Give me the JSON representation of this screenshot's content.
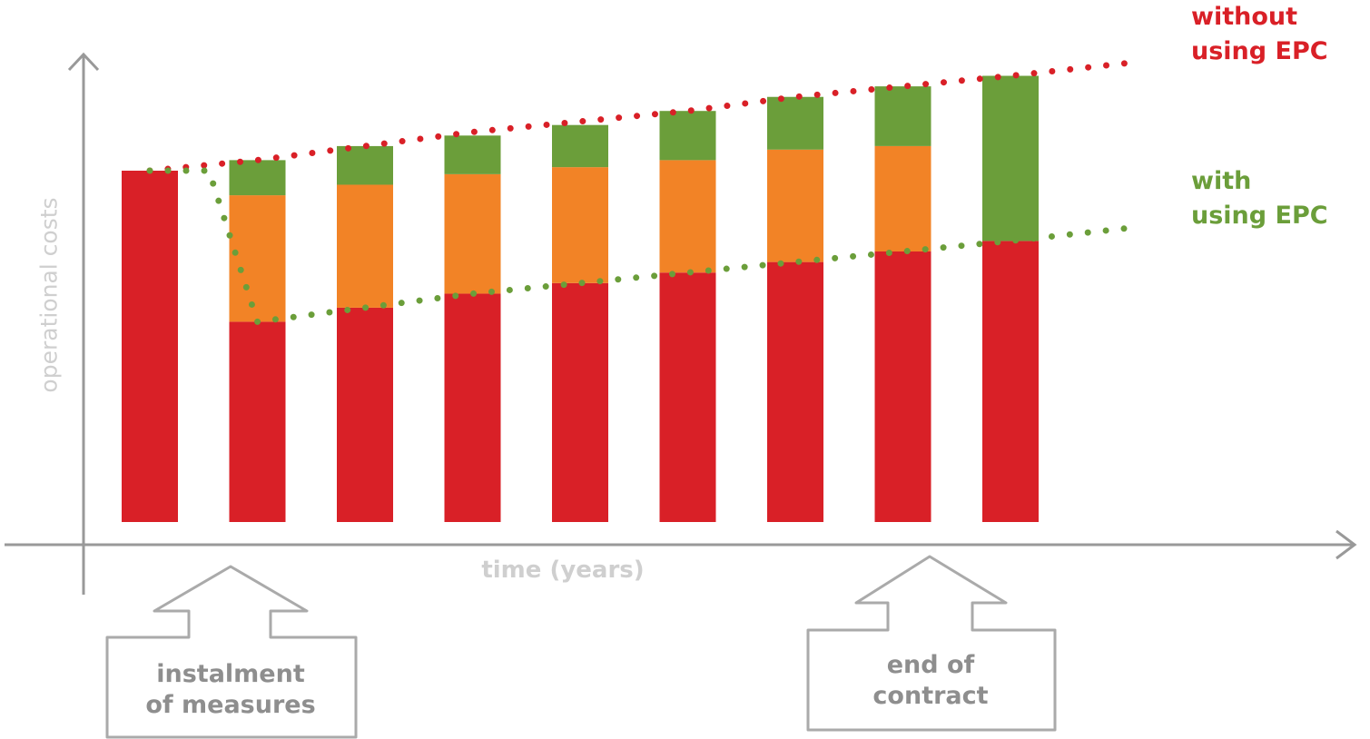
{
  "chart_data": {
    "type": "bar",
    "stacked": true,
    "categories": [
      "",
      "",
      "",
      "",
      "",
      "",
      "",
      "",
      ""
    ],
    "series": [
      {
        "color": "#d92027",
        "values": [
          100,
          57,
          61,
          65,
          68,
          71,
          74,
          77,
          80
        ]
      },
      {
        "color": "#f28326",
        "values": [
          0,
          36,
          35,
          34,
          33,
          32,
          32,
          30,
          0
        ]
      },
      {
        "color": "#6b9e3a",
        "values": [
          0,
          10,
          11,
          11,
          12,
          14,
          15,
          17,
          47
        ]
      }
    ],
    "lines": [
      {
        "name": "without using EPC",
        "color": "#d92027",
        "style": "dotted",
        "x": [
          0,
          1,
          2,
          3,
          4,
          5,
          6,
          7,
          8,
          9.2
        ],
        "y": [
          100,
          103,
          107,
          111,
          114,
          117,
          121,
          124,
          127,
          131
        ]
      },
      {
        "name": "with using EPC",
        "color": "#6b9e3a",
        "style": "dotted",
        "x": [
          0,
          0.55,
          1,
          2,
          3,
          4,
          5,
          6,
          7,
          8,
          9.2
        ],
        "y": [
          100,
          100,
          57,
          61,
          65,
          68,
          71,
          74,
          77,
          80,
          84
        ]
      }
    ],
    "xlabel": "time (years)",
    "ylabel": "operational costs",
    "ylim": [
      0,
      140
    ],
    "grid": false,
    "legend_placement": "right"
  },
  "legend": {
    "without_line1": "without",
    "without_line2": "using EPC",
    "with_line1": "with",
    "with_line2": "using EPC"
  },
  "callouts": {
    "instalment_line1": "instalment",
    "instalment_line2": "of measures",
    "end_line1": "end of",
    "end_line2": "contract"
  },
  "colors": {
    "axis": "#999999",
    "label_gray": "#cfcfcf",
    "callout_text": "#8e8e8e",
    "red": "#d92027",
    "orange": "#f28326",
    "green": "#6b9e3a"
  }
}
